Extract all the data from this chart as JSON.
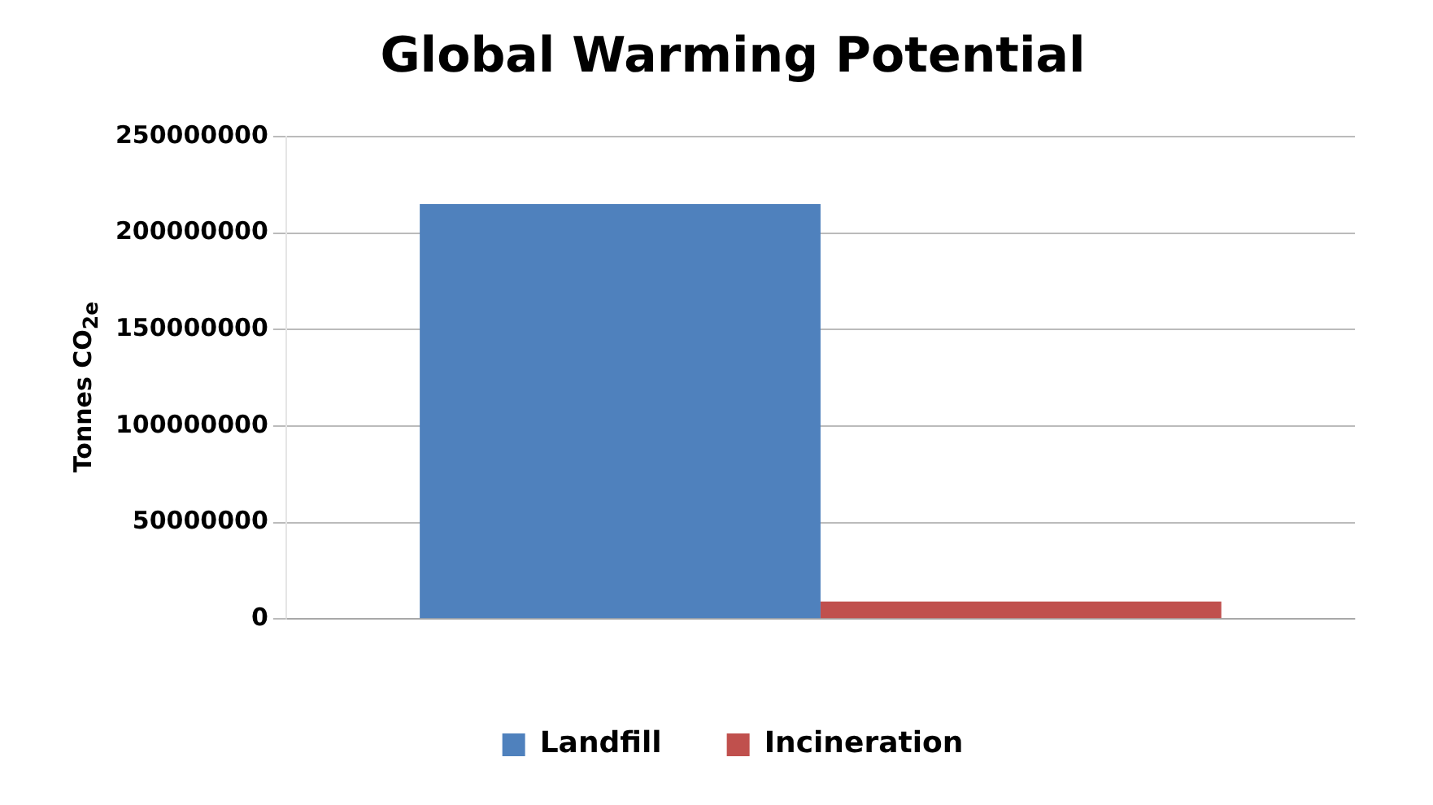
{
  "chart_data": {
    "type": "bar",
    "title": "Global Warming Potential",
    "ylabel": "Tonnes CO$_{2e}$",
    "categories": [
      null
    ],
    "series": [
      {
        "name": "Landfill",
        "color": "#4f81bd",
        "values": [
          215000000
        ]
      },
      {
        "name": "Incineration",
        "color": "#c0504d",
        "values": [
          9000000
        ]
      }
    ],
    "ylim": [
      0,
      250000000
    ],
    "yticks": [
      0,
      50000000,
      100000000,
      150000000,
      200000000,
      250000000
    ],
    "grid": "y",
    "legend": "bottom"
  }
}
